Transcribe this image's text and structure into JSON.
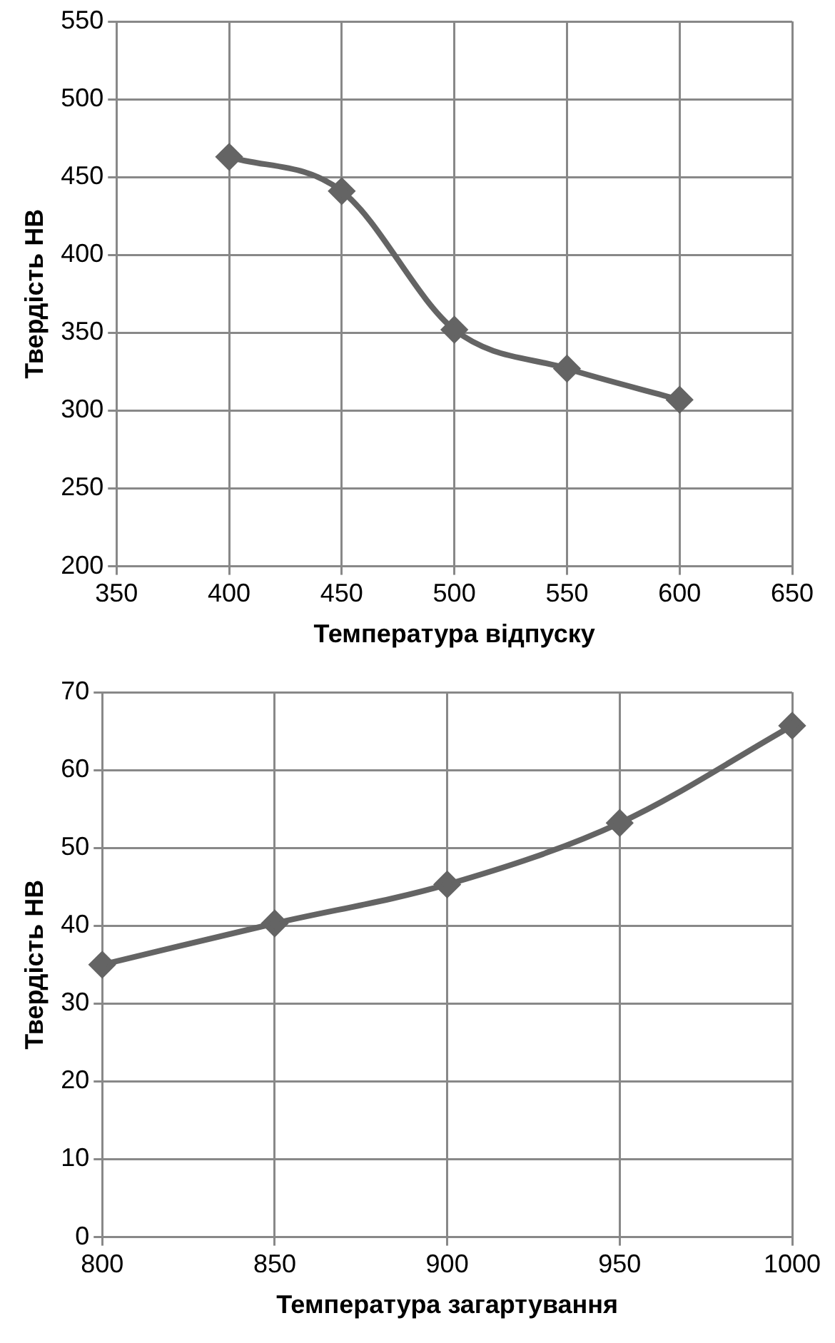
{
  "chart_data": [
    {
      "type": "line",
      "xlabel": "Температура відпуску",
      "ylabel": "Твердість НВ",
      "x": [
        400,
        450,
        500,
        550,
        600
      ],
      "series": [
        {
          "color": "#646464",
          "values": [
            463,
            441,
            352,
            327,
            307
          ]
        }
      ],
      "xlim": [
        350,
        650
      ],
      "xticks": [
        350,
        400,
        450,
        500,
        550,
        600,
        650
      ],
      "ylim": [
        200,
        550
      ],
      "yticks": [
        200,
        250,
        300,
        350,
        400,
        450,
        500,
        550
      ],
      "grid": true,
      "legend": false,
      "marker": "diamond",
      "line_style": "solid"
    },
    {
      "type": "line",
      "xlabel": "Температура загартування",
      "ylabel": "Твердість НВ",
      "x": [
        800,
        850,
        900,
        950,
        1000
      ],
      "series": [
        {
          "color": "#646464",
          "values": [
            35,
            40.3,
            45.3,
            53.2,
            65.7
          ]
        }
      ],
      "xlim": [
        800,
        1000
      ],
      "xticks": [
        800,
        850,
        900,
        950,
        1000
      ],
      "ylim": [
        0,
        70
      ],
      "yticks": [
        0,
        10,
        20,
        30,
        40,
        50,
        60,
        70
      ],
      "grid": true,
      "legend": false,
      "marker": "diamond",
      "line_style": "solid"
    }
  ]
}
